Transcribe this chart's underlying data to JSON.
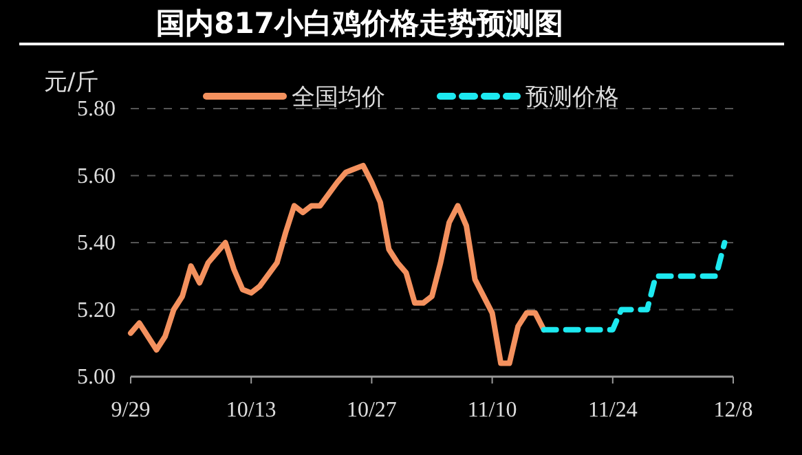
{
  "chart_data": {
    "type": "line",
    "title": "国内817小白鸡价格走势预测图",
    "ylabel": "元/斤",
    "xlim": [
      "--09-29",
      "--12-08"
    ],
    "xticks": [
      {
        "value": "--09-29",
        "label": "9/29"
      },
      {
        "value": "--10-13",
        "label": "10/13"
      },
      {
        "value": "--10-27",
        "label": "10/27"
      },
      {
        "value": "--11-10",
        "label": "11/10"
      },
      {
        "value": "--11-24",
        "label": "11/24"
      },
      {
        "value": "--12-08",
        "label": "12/8"
      }
    ],
    "ylim": [
      5.0,
      5.8
    ],
    "yticks": [
      {
        "value": 5.0,
        "label": "5.00"
      },
      {
        "value": 5.2,
        "label": "5.20"
      },
      {
        "value": 5.4,
        "label": "5.40"
      },
      {
        "value": 5.6,
        "label": "5.60"
      },
      {
        "value": 5.8,
        "label": "5.80"
      }
    ],
    "grid": "y",
    "legend": "top",
    "series": [
      {
        "name": "全国均价",
        "color": "#f4915e",
        "line_style": "solid",
        "x": [
          "--09-29",
          "--09-30",
          "--10-02",
          "--10-03",
          "--10-04",
          "--10-05",
          "--10-06",
          "--10-07",
          "--10-08",
          "--10-09",
          "--10-10",
          "--10-11",
          "--10-12",
          "--10-13",
          "--10-14",
          "--10-16",
          "--10-17",
          "--10-18",
          "--10-19",
          "--10-20",
          "--10-21",
          "--10-23",
          "--10-24",
          "--10-25",
          "--10-26",
          "--10-27",
          "--10-28",
          "--10-29",
          "--10-30",
          "--10-31",
          "--11-01",
          "--11-02",
          "--11-03",
          "--11-04",
          "--11-05",
          "--11-06",
          "--11-07",
          "--11-08",
          "--11-10",
          "--11-11",
          "--11-12",
          "--11-13",
          "--11-14",
          "--11-15",
          "--11-16"
        ],
        "values": [
          5.13,
          5.16,
          5.08,
          5.12,
          5.2,
          5.24,
          5.33,
          5.28,
          5.34,
          5.37,
          5.4,
          5.32,
          5.26,
          5.25,
          5.27,
          5.34,
          5.43,
          5.51,
          5.49,
          5.51,
          5.51,
          5.58,
          5.61,
          5.62,
          5.63,
          5.58,
          5.52,
          5.38,
          5.34,
          5.31,
          5.22,
          5.22,
          5.24,
          5.34,
          5.46,
          5.51,
          5.45,
          5.29,
          5.19,
          5.04,
          5.04,
          5.15,
          5.19,
          5.19,
          5.14
        ]
      },
      {
        "name": "预测价格",
        "color": "#1de9f0",
        "line_style": "dashed",
        "x": [
          "--11-16",
          "--11-24",
          "--11-25",
          "--11-28",
          "--11-29",
          "--12-06",
          "--12-07"
        ],
        "values": [
          5.14,
          5.14,
          5.2,
          5.2,
          5.3,
          5.3,
          5.4
        ]
      }
    ]
  }
}
